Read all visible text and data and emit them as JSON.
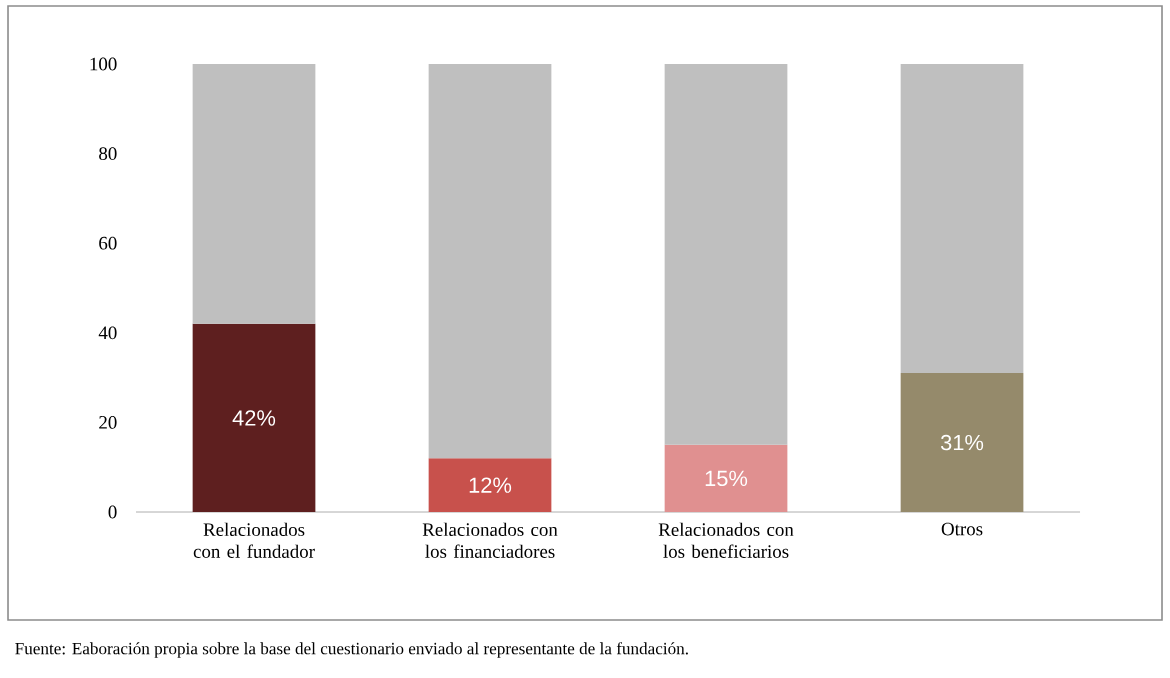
{
  "chart_data": {
    "type": "bar",
    "stacked": true,
    "categories": [
      "Relacionados con el fundador",
      "Relacionados con los financiadores",
      "Relacionados con los beneficiarios",
      "Otros"
    ],
    "series": [
      {
        "colors": [
          "#5e1f1f",
          "#c8514c",
          "#e09090",
          "#958a6b"
        ],
        "values": [
          42,
          12,
          15,
          31
        ],
        "value_labels": [
          "42%",
          "12%",
          "15%",
          "31%"
        ]
      },
      {
        "color": "#bfbfbf",
        "values": [
          58,
          88,
          85,
          69
        ]
      }
    ],
    "ylim": [
      0,
      100
    ],
    "yticks": [
      0,
      20,
      40,
      60,
      80,
      100
    ],
    "annotations": [
      "Fuente: Eaboración propia sobre la base del cuestionario enviado al representante de la fundación."
    ]
  }
}
